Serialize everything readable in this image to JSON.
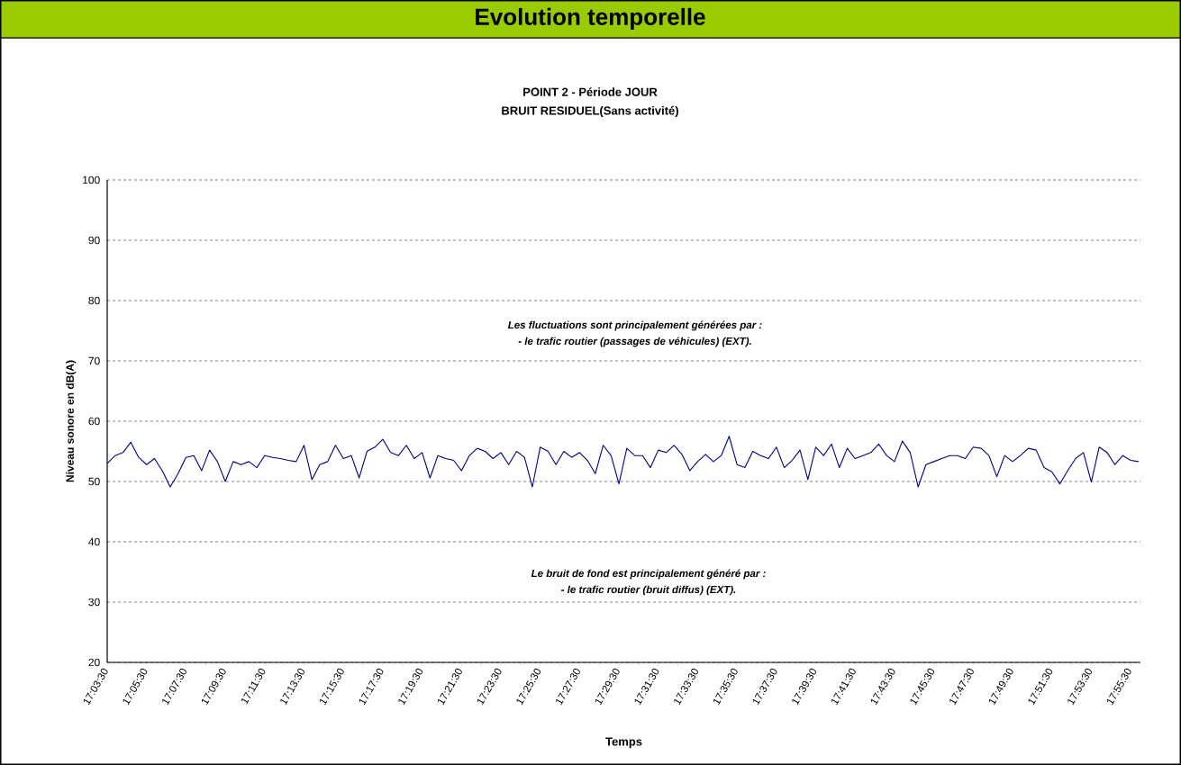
{
  "chart_data": {
    "type": "line",
    "title": "Evolution temporelle",
    "subtitle": "POINT 2 - Période JOUR",
    "annotations": [
      "BRUIT RESIDUEL(Sans activité)",
      "Les fluctuations sont principalement générées par :",
      "- le trafic routier (passages de véhicules) (EXT).",
      "Le bruit de fond est principalement généré par :",
      "- le trafic routier (bruit diffus) (EXT)."
    ],
    "xlabel": "Temps",
    "ylabel": "Niveau sonore en dB(A)",
    "color": "#000080",
    "grid": "y",
    "xlim": [
      17.05833,
      17.93333
    ],
    "ylim": [
      20,
      100
    ],
    "yticks": [
      20,
      30,
      40,
      50,
      60,
      70,
      80,
      90,
      100
    ],
    "xticks": [
      {
        "value": 17.05833,
        "label": "17:03:30"
      },
      {
        "value": 17.075,
        "label": null
      },
      {
        "value": 17.09167,
        "label": "17:05:30"
      },
      {
        "value": 17.10833,
        "label": null
      },
      {
        "value": 17.125,
        "label": "17:07:30"
      },
      {
        "value": 17.14167,
        "label": null
      },
      {
        "value": 17.15833,
        "label": "17:09:30"
      },
      {
        "value": 17.175,
        "label": null
      },
      {
        "value": 17.19167,
        "label": "17:11:30"
      },
      {
        "value": 17.20833,
        "label": null
      },
      {
        "value": 17.225,
        "label": "17:13:30"
      },
      {
        "value": 17.24167,
        "label": null
      },
      {
        "value": 17.25833,
        "label": "17:15:30"
      },
      {
        "value": 17.275,
        "label": null
      },
      {
        "value": 17.29167,
        "label": "17:17:30"
      },
      {
        "value": 17.30833,
        "label": null
      },
      {
        "value": 17.325,
        "label": "17:19:30"
      },
      {
        "value": 17.34167,
        "label": null
      },
      {
        "value": 17.35833,
        "label": "17:21:30"
      },
      {
        "value": 17.375,
        "label": null
      },
      {
        "value": 17.39167,
        "label": "17:23:30"
      },
      {
        "value": 17.40833,
        "label": null
      },
      {
        "value": 17.425,
        "label": "17:25:30"
      },
      {
        "value": 17.44167,
        "label": null
      },
      {
        "value": 17.45833,
        "label": "17:27:30"
      },
      {
        "value": 17.475,
        "label": null
      },
      {
        "value": 17.49167,
        "label": "17:29:30"
      },
      {
        "value": 17.50833,
        "label": null
      },
      {
        "value": 17.525,
        "label": "17:31:30"
      },
      {
        "value": 17.54167,
        "label": null
      },
      {
        "value": 17.55833,
        "label": "17:33:30"
      },
      {
        "value": 17.575,
        "label": null
      },
      {
        "value": 17.59167,
        "label": "17:35:30"
      },
      {
        "value": 17.60833,
        "label": null
      },
      {
        "value": 17.625,
        "label": "17:37:30"
      },
      {
        "value": 17.64167,
        "label": null
      },
      {
        "value": 17.65833,
        "label": "17:39:30"
      },
      {
        "value": 17.675,
        "label": null
      },
      {
        "value": 17.69167,
        "label": "17:41:30"
      },
      {
        "value": 17.70833,
        "label": null
      },
      {
        "value": 17.725,
        "label": "17:43:30"
      },
      {
        "value": 17.74167,
        "label": null
      },
      {
        "value": 17.75833,
        "label": "17:45:30"
      },
      {
        "value": 17.775,
        "label": null
      },
      {
        "value": 17.79167,
        "label": "17:47:30"
      },
      {
        "value": 17.80833,
        "label": null
      },
      {
        "value": 17.825,
        "label": "17:49:30"
      },
      {
        "value": 17.84167,
        "label": null
      },
      {
        "value": 17.85833,
        "label": "17:51:30"
      },
      {
        "value": 17.875,
        "label": null
      },
      {
        "value": 17.89167,
        "label": "17:53:30"
      },
      {
        "value": 17.90833,
        "label": null
      },
      {
        "value": 17.925,
        "label": "17:55:30"
      }
    ],
    "x": [
      17.05833,
      17.065,
      17.07167,
      17.07833,
      17.085,
      17.09167,
      17.09833,
      17.105,
      17.11167,
      17.11833,
      17.125,
      17.13167,
      17.13833,
      17.145,
      17.15167,
      17.15833,
      17.165,
      17.17167,
      17.17833,
      17.185,
      17.19167,
      17.19833,
      17.205,
      17.21167,
      17.21833,
      17.225,
      17.23167,
      17.23833,
      17.245,
      17.25167,
      17.25833,
      17.265,
      17.27167,
      17.27833,
      17.285,
      17.29167,
      17.29833,
      17.305,
      17.31167,
      17.31833,
      17.325,
      17.33167,
      17.33833,
      17.345,
      17.35167,
      17.35833,
      17.365,
      17.37167,
      17.37833,
      17.385,
      17.39167,
      17.39833,
      17.405,
      17.41167,
      17.41833,
      17.425,
      17.43167,
      17.43833,
      17.445,
      17.45167,
      17.45833,
      17.465,
      17.47167,
      17.47833,
      17.485,
      17.49167,
      17.49833,
      17.505,
      17.51167,
      17.51833,
      17.525,
      17.53167,
      17.53833,
      17.545,
      17.55167,
      17.55833,
      17.565,
      17.57167,
      17.57833,
      17.585,
      17.59167,
      17.59833,
      17.605,
      17.61167,
      17.61833,
      17.625,
      17.63167,
      17.63833,
      17.645,
      17.65167,
      17.65833,
      17.665,
      17.67167,
      17.67833,
      17.685,
      17.69167,
      17.69833,
      17.705,
      17.71167,
      17.71833,
      17.725,
      17.73167,
      17.73833,
      17.745,
      17.75167,
      17.75833,
      17.765,
      17.77167,
      17.77833,
      17.785,
      17.79167,
      17.79833,
      17.805,
      17.81167,
      17.81833,
      17.825,
      17.83167,
      17.83833,
      17.845,
      17.85167,
      17.85833,
      17.865,
      17.87167,
      17.87833,
      17.885,
      17.89167,
      17.89833,
      17.905,
      17.91167,
      17.91833,
      17.925,
      17.93167
    ],
    "values": [
      53.0,
      54.3,
      54.8,
      56.5,
      54.0,
      52.8,
      53.8,
      51.8,
      49.1,
      51.3,
      54.0,
      54.3,
      51.8,
      55.2,
      53.3,
      50.0,
      53.3,
      52.8,
      53.3,
      52.3,
      54.3,
      54.0,
      53.8,
      53.5,
      53.3,
      56.0,
      50.3,
      52.8,
      53.3,
      56.0,
      53.8,
      54.3,
      50.6,
      55.0,
      55.7,
      57.0,
      54.8,
      54.3,
      56.0,
      53.8,
      54.8,
      50.6,
      54.3,
      53.8,
      53.5,
      51.8,
      54.3,
      55.5,
      55.0,
      53.8,
      54.8,
      52.8,
      55.0,
      54.0,
      49.1,
      55.7,
      55.0,
      52.8,
      55.0,
      54.0,
      54.8,
      53.5,
      51.3,
      56.0,
      54.3,
      49.6,
      55.5,
      54.3,
      54.3,
      52.3,
      55.2,
      54.8,
      56.0,
      54.5,
      51.8,
      53.3,
      54.5,
      53.3,
      54.3,
      57.5,
      52.8,
      52.3,
      55.0,
      54.3,
      53.8,
      55.7,
      52.3,
      53.5,
      55.2,
      50.3,
      55.7,
      54.3,
      56.2,
      52.3,
      55.5,
      53.8,
      54.3,
      54.8,
      56.2,
      54.3,
      53.3,
      56.7,
      54.8,
      49.1,
      52.8,
      53.3,
      53.8,
      54.3,
      54.3,
      53.8,
      55.7,
      55.5,
      54.3,
      50.8,
      54.3,
      53.3,
      54.3,
      55.5,
      55.2,
      52.3,
      51.6,
      49.6,
      51.8,
      53.8,
      54.8,
      49.9,
      55.7,
      54.8,
      52.8,
      54.3,
      53.5,
      53.3
    ]
  }
}
